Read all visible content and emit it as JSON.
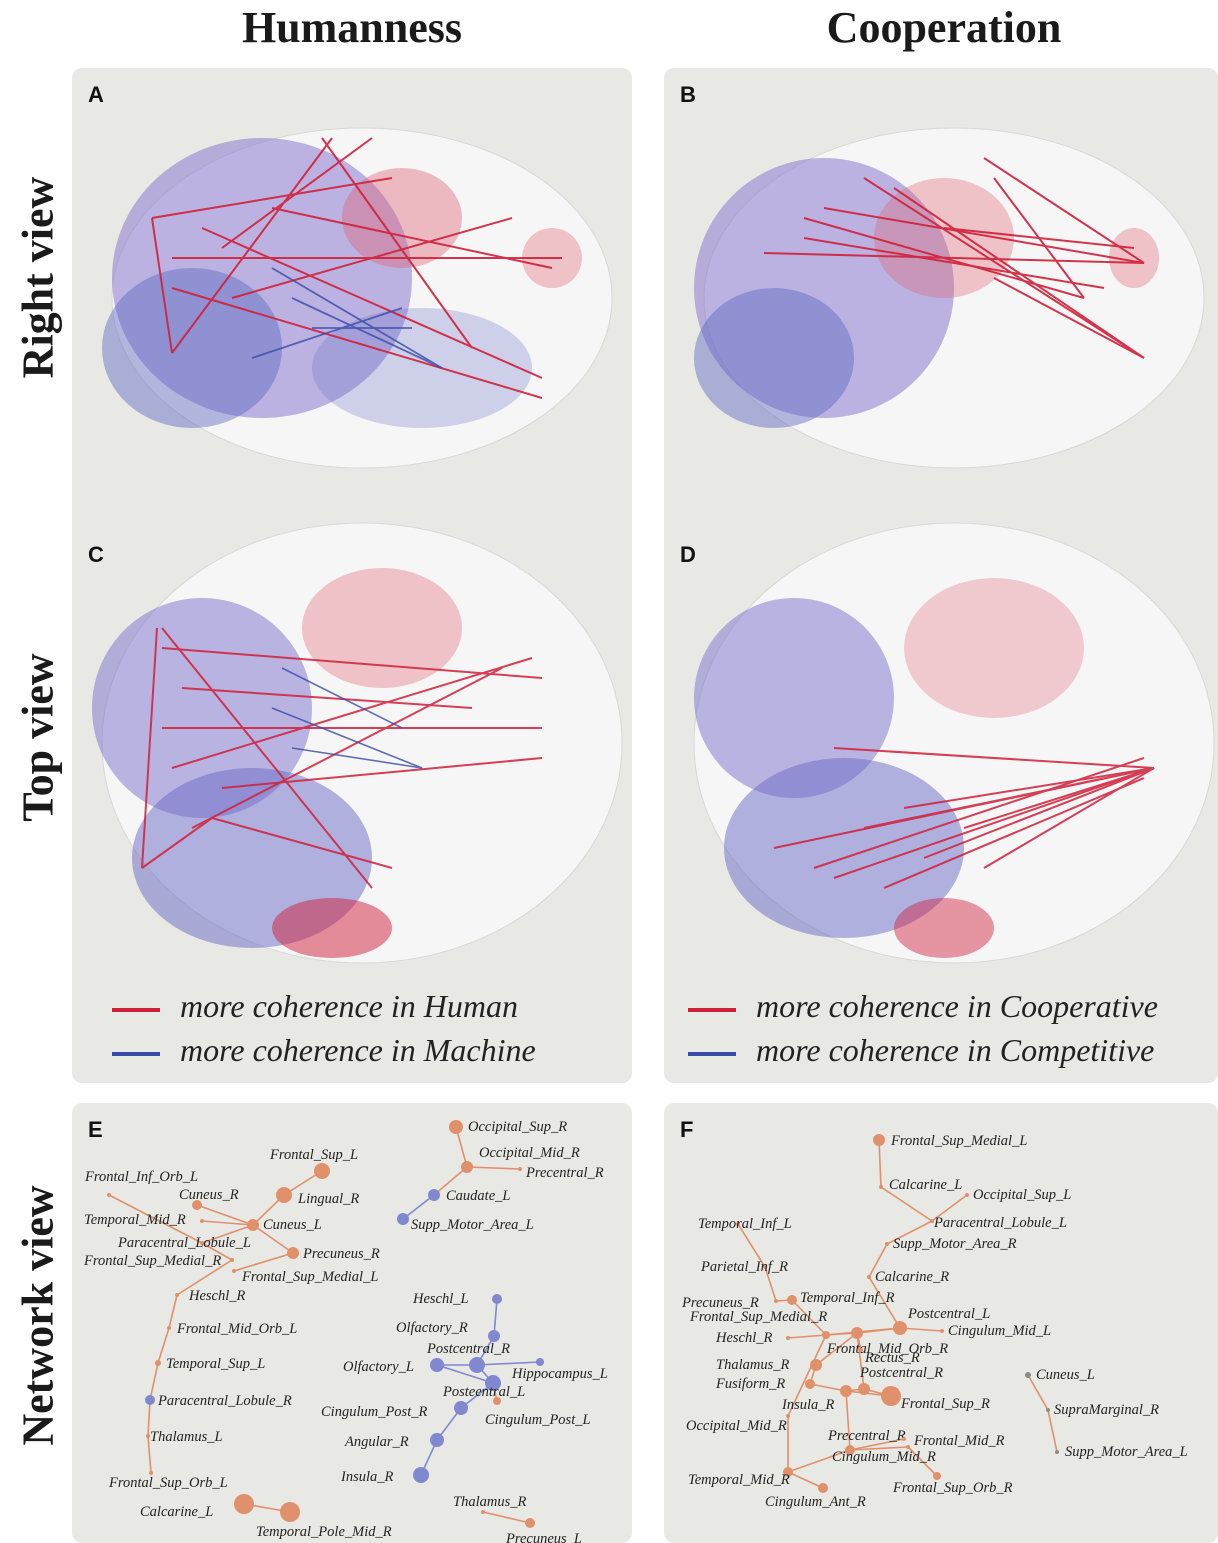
{
  "columns": [
    "Humanness",
    "Cooperation"
  ],
  "rows": [
    "Right view",
    "Top view",
    "Network view"
  ],
  "panels": {
    "A": "A",
    "B": "B",
    "C": "C",
    "D": "D",
    "E": "E",
    "F": "F"
  },
  "legend_left": {
    "red": "more coherence in Human",
    "blue": "more coherence in Machine",
    "red_color": "#d0203a",
    "blue_color": "#3a4aa8"
  },
  "legend_right": {
    "red": "more coherence in Cooperative",
    "blue": "more coherence in Competitive",
    "red_color": "#d0203a",
    "blue_color": "#3a4aa8"
  },
  "network_E": {
    "orange_nodes": [
      "Frontal_Sup_L",
      "Frontal_Inf_Orb_L",
      "Cuneus_R",
      "Lingual_R",
      "Temporal_Mid_R",
      "Cuneus_L",
      "Paracentral_Lobule_L",
      "Precuneus_R",
      "Frontal_Sup_Medial_R",
      "Frontal_Sup_Medial_L",
      "Heschl_R",
      "Frontal_Mid_Orb_L",
      "Temporal_Sup_L",
      "Thalamus_L",
      "Frontal_Sup_Orb_L",
      "Calcarine_L",
      "Temporal_Pole_Mid_R",
      "Occipital_Sup_R",
      "Occipital_Mid_R",
      "Precentral_R",
      "Thalamus_R",
      "Precuneus_L",
      "Cingulum_Post_L"
    ],
    "blue_nodes": [
      "Caudate_L",
      "Supp_Motor_Area_L",
      "Paracentral_Lobule_R",
      "Heschl_L",
      "Olfactory_R",
      "Postcentral_R",
      "Olfactory_L",
      "Hippocampus_L",
      "Posteentral_L",
      "Cingulum_Post_R",
      "Angular_R",
      "Insula_R"
    ]
  },
  "network_F": {
    "orange_nodes": [
      "Frontal_Sup_Medial_L",
      "Calcarine_L",
      "Occipital_Sup_L",
      "Paracentral_Lobule_L",
      "Supp_Motor_Area_R",
      "Temporal_Inf_L",
      "Parietal_Inf_R",
      "Calcarine_R",
      "Precuneus_R",
      "Temporal_Inf_R",
      "Postcentral_L",
      "Frontal_Sup_Medial_R",
      "Cingulum_Mid_L",
      "Heschl_R",
      "Frontal_Mid_Orb_R",
      "Rectus_R",
      "Thalamus_R",
      "Postcentral_R",
      "Fusiform_R",
      "Insula_R",
      "Frontal_Sup_R",
      "Occipital_Mid_R",
      "Precentral_R",
      "Frontal_Mid_R",
      "Cingulum_Mid_R",
      "Temporal_Mid_R",
      "Frontal_Sup_Orb_R",
      "Cingulum_Ant_R"
    ],
    "gray_nodes": [
      "Cuneus_L",
      "SupraMarginal_R",
      "Supp_Motor_Area_L"
    ]
  }
}
